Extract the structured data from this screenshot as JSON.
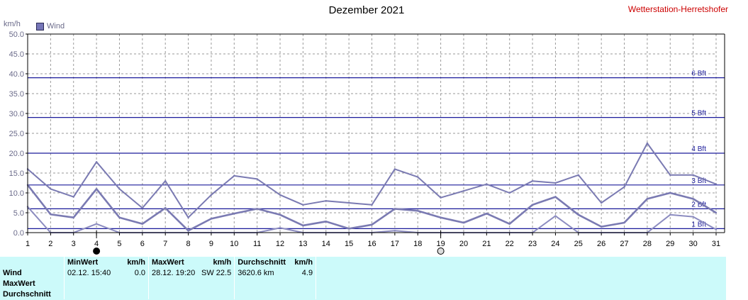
{
  "title": "Dezember 2021",
  "station": "Wetterstation-Herretshofer",
  "unit": "km/h",
  "legend": {
    "label": "Wind",
    "color": "#7676b8"
  },
  "chart_data": {
    "type": "line",
    "title": "Dezember 2021",
    "ylabel": "km/h",
    "xlim": [
      1,
      31
    ],
    "ylim": [
      0,
      50
    ],
    "x": [
      1,
      2,
      3,
      4,
      5,
      6,
      7,
      8,
      9,
      10,
      11,
      12,
      13,
      14,
      15,
      16,
      17,
      18,
      19,
      20,
      21,
      22,
      23,
      24,
      25,
      26,
      27,
      28,
      29,
      30,
      31
    ],
    "xticks": [
      "1",
      "2",
      "3",
      "4",
      "5",
      "6",
      "7",
      "8",
      "9",
      "10",
      "11",
      "12",
      "13",
      "14",
      "15",
      "16",
      "17",
      "18",
      "19",
      "20",
      "21",
      "22",
      "23",
      "24",
      "25",
      "26",
      "27",
      "28",
      "29",
      "30",
      "31"
    ],
    "yticks": [
      "0.0",
      "5.0",
      "10.0",
      "15.0",
      "20.0",
      "25.0",
      "30.0",
      "35.0",
      "40.0",
      "45.0",
      "50.0"
    ],
    "grid": true,
    "legend_position": "top-left",
    "series": [
      {
        "name": "Wind",
        "role": "max",
        "values": [
          16.0,
          11.0,
          9.0,
          17.8,
          11.0,
          6.2,
          13.0,
          3.8,
          9.5,
          14.3,
          13.5,
          9.5,
          7.0,
          8.0,
          7.5,
          7.0,
          16.0,
          14.0,
          8.8,
          10.5,
          12.2,
          10.0,
          13.0,
          12.5,
          14.5,
          7.5,
          11.5,
          22.5,
          14.5,
          14.5,
          12.2
        ]
      },
      {
        "role": "avg",
        "values": [
          12.0,
          4.6,
          3.8,
          11.0,
          3.8,
          2.2,
          6.2,
          0.5,
          3.5,
          4.8,
          6.0,
          4.5,
          1.8,
          2.8,
          1.0,
          2.0,
          6.0,
          5.5,
          3.8,
          2.5,
          4.8,
          2.2,
          7.0,
          9.0,
          4.5,
          1.5,
          2.5,
          8.5,
          10.0,
          8.5,
          5.0
        ]
      },
      {
        "role": "min",
        "values": [
          6.5,
          0,
          0,
          2.2,
          0,
          0,
          0,
          0,
          0,
          0,
          0,
          1.2,
          0,
          0,
          0,
          0,
          0.5,
          0,
          0,
          0,
          0,
          0,
          0,
          4.2,
          0,
          0,
          0,
          0,
          4.5,
          4.0,
          0.8
        ]
      }
    ],
    "beaufort": [
      {
        "label": "1 Bft",
        "value": 1
      },
      {
        "label": "2 Bft",
        "value": 6
      },
      {
        "label": "3 Bft",
        "value": 12
      },
      {
        "label": "4 Bft",
        "value": 20
      },
      {
        "label": "5 Bft",
        "value": 29
      },
      {
        "label": "6 Bft",
        "value": 39
      }
    ],
    "moon_phases": [
      {
        "day": 4,
        "phase": "new"
      },
      {
        "day": 19,
        "phase": "full"
      }
    ]
  },
  "stats": {
    "row_labels": [
      "Wind",
      "MaxWert",
      "Durchschnitt"
    ],
    "min": {
      "header": "MinWert",
      "unit": "km/h",
      "date": "02.12.",
      "time": "15:40",
      "value": "0.0"
    },
    "max": {
      "header": "MaxWert",
      "unit": "km/h",
      "date": "28.12.",
      "time": "19:20",
      "dir": "SW",
      "value": "22.5"
    },
    "avg": {
      "header": "Durchschnitt",
      "unit": "km/h",
      "distance": "3620.6 km",
      "value": "4.9"
    }
  }
}
